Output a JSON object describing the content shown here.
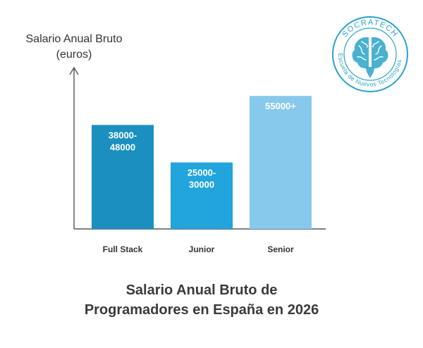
{
  "chart_data": {
    "type": "bar",
    "title_lines": [
      "Salario Anual Bruto de",
      "Programadores en España en 2026"
    ],
    "ylabel_lines": [
      "Salario Anual Bruto",
      "(euros)"
    ],
    "xlabel": "",
    "categories": [
      "Full Stack",
      "Junior",
      "Senior"
    ],
    "values": [
      43000,
      27500,
      55000
    ],
    "data_labels": [
      [
        "38000-",
        "48000"
      ],
      [
        "25000-",
        "30000"
      ],
      [
        "55000+"
      ]
    ],
    "colors": [
      "#1a8fc0",
      "#22a4dd",
      "#87c9ec"
    ],
    "ylim": [
      0,
      60000
    ],
    "grid": false,
    "legend": "none"
  },
  "logo": {
    "top_text": "SOCRATECH",
    "ring_text": "Escuela de Nuevos Tecnologías",
    "icon": "brain-icon",
    "color": "#2aa3c8"
  }
}
